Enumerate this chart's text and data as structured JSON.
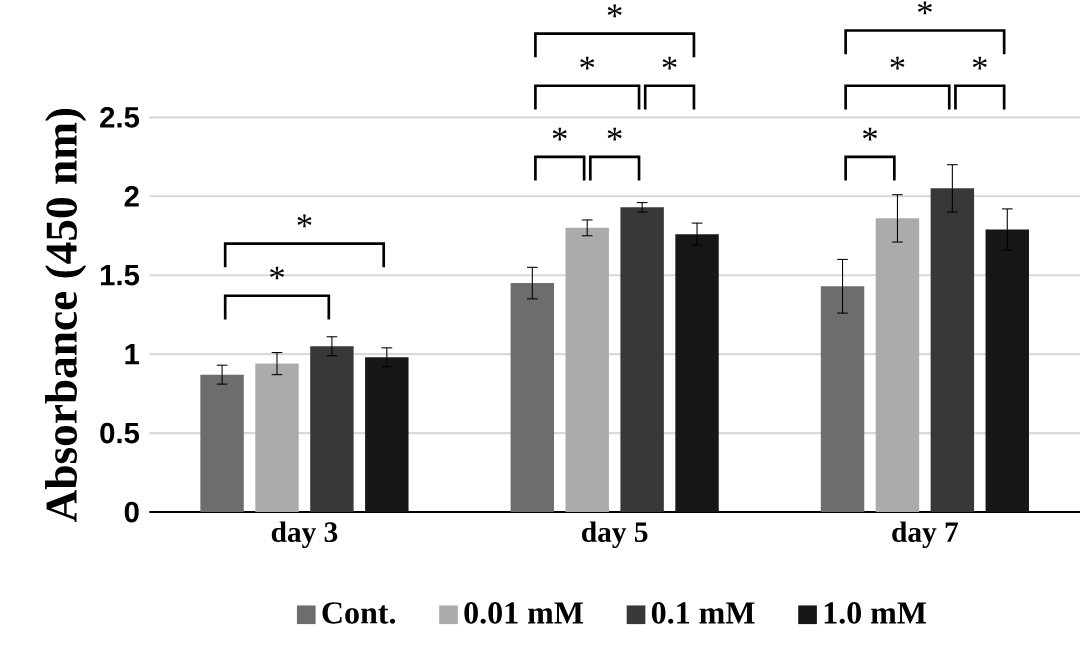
{
  "chart_data": {
    "type": "bar",
    "ylabel": "Absorbance (450 nm)",
    "categories": [
      "day 3",
      "day 5",
      "day 7"
    ],
    "series": [
      {
        "name": "Cont.",
        "color": "#6d6d6d",
        "values": [
          0.87,
          1.45,
          1.43
        ],
        "errors": [
          0.06,
          0.1,
          0.17
        ]
      },
      {
        "name": "0.01 mM",
        "color": "#ababab",
        "values": [
          0.94,
          1.8,
          1.86
        ],
        "errors": [
          0.07,
          0.05,
          0.15
        ]
      },
      {
        "name": "0.1 mM",
        "color": "#383838",
        "values": [
          1.05,
          1.93,
          2.05
        ],
        "errors": [
          0.06,
          0.03,
          0.15
        ]
      },
      {
        "name": "1.0 mM",
        "color": "#171717",
        "values": [
          0.98,
          1.76,
          1.79
        ],
        "errors": [
          0.06,
          0.07,
          0.13
        ]
      }
    ],
    "ylim": [
      0,
      2.5
    ],
    "yticks": [
      0,
      0.5,
      1,
      1.5,
      2,
      2.5
    ],
    "grid": "y",
    "legend": "bottom",
    "annotations": [
      "*",
      "*",
      "*",
      "*",
      "*",
      "*",
      "*",
      "*",
      "*",
      "*",
      "*"
    ]
  }
}
